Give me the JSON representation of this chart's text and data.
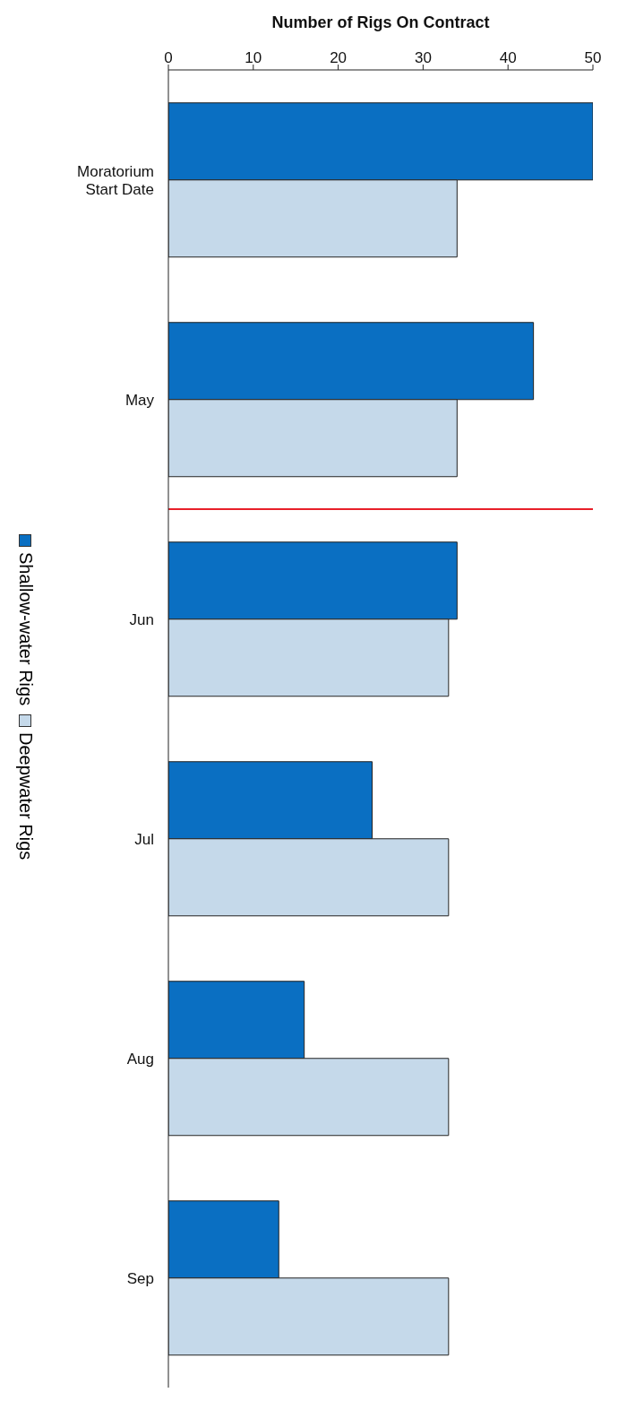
{
  "chart_data": {
    "type": "bar",
    "orientation": "horizontal",
    "xlabel": "Number of Rigs On Contract",
    "categories": [
      "Moratorium Start Date",
      "May",
      "Jun",
      "Jul",
      "Aug",
      "Sep"
    ],
    "series": [
      {
        "name": "Shallow-water Rigs",
        "color": "#0a6fc2",
        "values": [
          50,
          43,
          34,
          24,
          16,
          13
        ]
      },
      {
        "name": "Deepwater Rigs",
        "color": "#c5d9ea",
        "values": [
          34,
          34,
          33,
          33,
          33,
          33
        ]
      }
    ],
    "xlim": [
      0,
      50
    ],
    "xticks": [
      0,
      10,
      20,
      30,
      40,
      50
    ],
    "ref_lines": [
      {
        "axis": "y",
        "value": "Jun",
        "color": "#e8202a"
      }
    ],
    "legend": "left"
  }
}
